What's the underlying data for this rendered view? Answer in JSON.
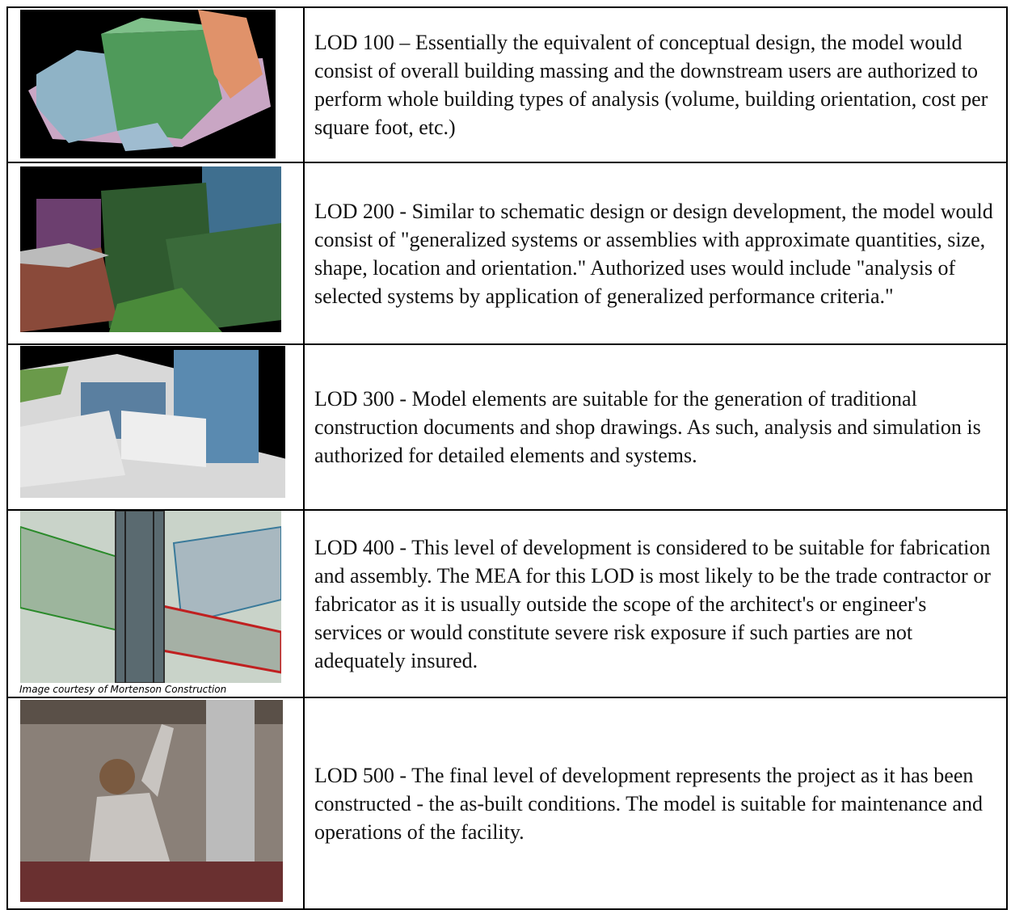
{
  "table": {
    "rows": [
      {
        "description": "LOD 100 – Essentially the equivalent of conceptual design, the model would consist of overall building massing and the downstream users are authorized to perform whole building types of analysis (volume, building orientation, cost per square foot, etc.)"
      },
      {
        "description": "LOD 200 - Similar to schematic design or design development, the model would consist of \"generalized systems or assemblies with approximate quantities, size, shape, location and orientation.\" Authorized uses would include \"analysis of selected systems by application of generalized performance criteria.\""
      },
      {
        "description": "LOD 300 - Model elements are suitable for the generation of traditional construction documents and shop drawings.  As such, analysis and simulation is authorized for detailed elements and systems."
      },
      {
        "description": "LOD 400 - This level of development is considered to be suitable for fabrication and assembly.  The MEA for this LOD is most likely to be the trade contractor or fabricator as it is usually outside the scope of the architect's or engineer's services or would constitute severe risk exposure if such parties are not adequately insured.",
        "image_caption": "Image courtesy of Mortenson Construction"
      },
      {
        "description": "LOD 500 - The final level of development represents the project as it has been constructed - the as-built conditions.  The model is suitable for maintenance and operations of the facility."
      }
    ]
  }
}
